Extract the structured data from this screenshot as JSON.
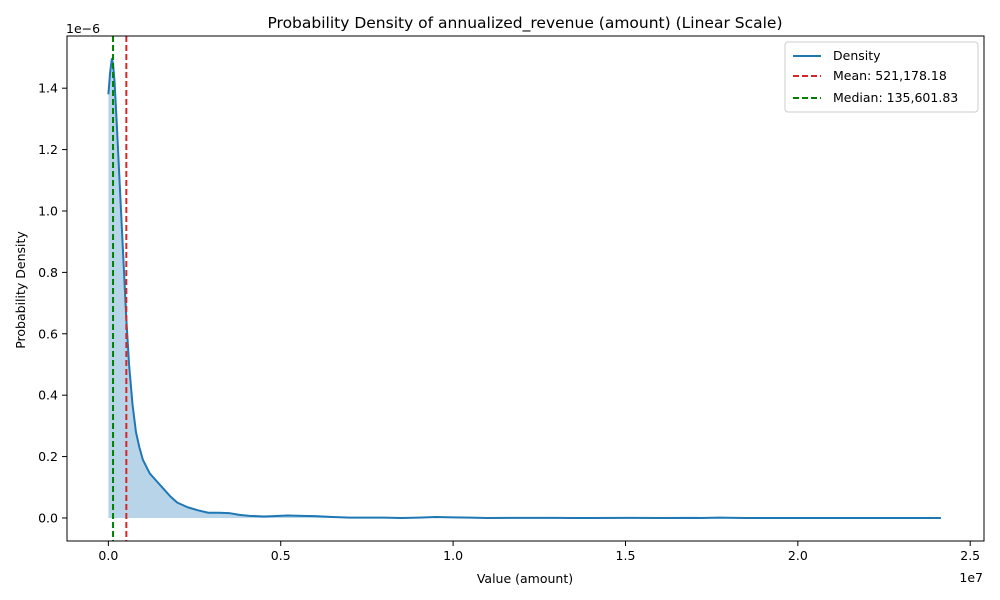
{
  "chart_data": {
    "type": "area",
    "title": "Probability Density of annualized_revenue (amount) (Linear Scale)",
    "xlabel": "Value (amount)",
    "ylabel": "Probability Density",
    "x_offset_label": "1e7",
    "y_offset_label": "1e−6",
    "xlim": [
      -1200000,
      25400000
    ],
    "ylim": [
      -7.5e-08,
      1.57e-06
    ],
    "x_ticks": [
      0,
      5000000,
      10000000,
      15000000,
      20000000,
      25000000
    ],
    "x_tick_labels": [
      "0.0",
      "0.5",
      "1.0",
      "1.5",
      "2.0",
      "2.5"
    ],
    "y_ticks": [
      0,
      2e-07,
      4e-07,
      6e-07,
      8e-07,
      1e-06,
      1.2e-06,
      1.4e-06
    ],
    "y_tick_labels": [
      "0.0",
      "0.2",
      "0.4",
      "0.6",
      "0.8",
      "1.0",
      "1.2",
      "1.4"
    ],
    "grid": false,
    "legend_position": "top-right",
    "colors": {
      "density": "#1f77b4",
      "fill": "#b7d4e8",
      "mean": "#d62728",
      "median": "#008000"
    },
    "series": [
      {
        "name": "Density",
        "x": [
          0,
          50000,
          100000,
          135000,
          180000,
          250000,
          350000,
          450000,
          520000,
          600000,
          700000,
          800000,
          900000,
          1000000,
          1200000,
          1400000,
          1600000,
          1800000,
          2000000,
          2300000,
          2600000,
          2900000,
          3200000,
          3500000,
          3800000,
          4100000,
          4500000,
          4800000,
          5200000,
          5600000,
          6000000,
          6500000,
          7000000,
          7500000,
          8000000,
          8500000,
          9000000,
          9500000,
          10000000,
          10500000,
          11000000,
          12000000,
          13000000,
          13500000,
          14000000,
          15000000,
          16000000,
          17000000,
          17200000,
          17700000,
          18500000,
          19000000,
          20000000,
          21000000,
          22000000,
          23000000,
          24150000
        ],
        "y": [
          1.38e-06,
          1.45e-06,
          1.495e-06,
          1.48e-06,
          1.42e-06,
          1.27e-06,
          1.04e-06,
          8.1e-07,
          6.5e-07,
          5e-07,
          3.7e-07,
          2.8e-07,
          2.3e-07,
          1.9e-07,
          1.45e-07,
          1.2e-07,
          9.5e-08,
          7e-08,
          5e-08,
          3.5e-08,
          2.5e-08,
          1.7e-08,
          1.7e-08,
          1.6e-08,
          1e-08,
          7e-09,
          5e-09,
          6e-09,
          8e-09,
          7e-09,
          6e-09,
          3e-09,
          1e-09,
          1e-09,
          1e-09,
          0.0,
          1e-09,
          3e-09,
          2e-09,
          1e-09,
          0.0,
          5e-10,
          5e-10,
          0.0,
          0.0,
          5e-10,
          0.0,
          5e-10,
          0.0,
          1e-09,
          0.0,
          0.0,
          0.0,
          0.0,
          0.0,
          0.0,
          0.0
        ]
      }
    ],
    "reference_lines": [
      {
        "name": "Mean: 521,178.18",
        "value": 521178.18,
        "style": "dashed",
        "color": "#d62728"
      },
      {
        "name": "Median: 135,601.83",
        "value": 135601.83,
        "style": "dashed",
        "color": "#008000"
      }
    ]
  }
}
